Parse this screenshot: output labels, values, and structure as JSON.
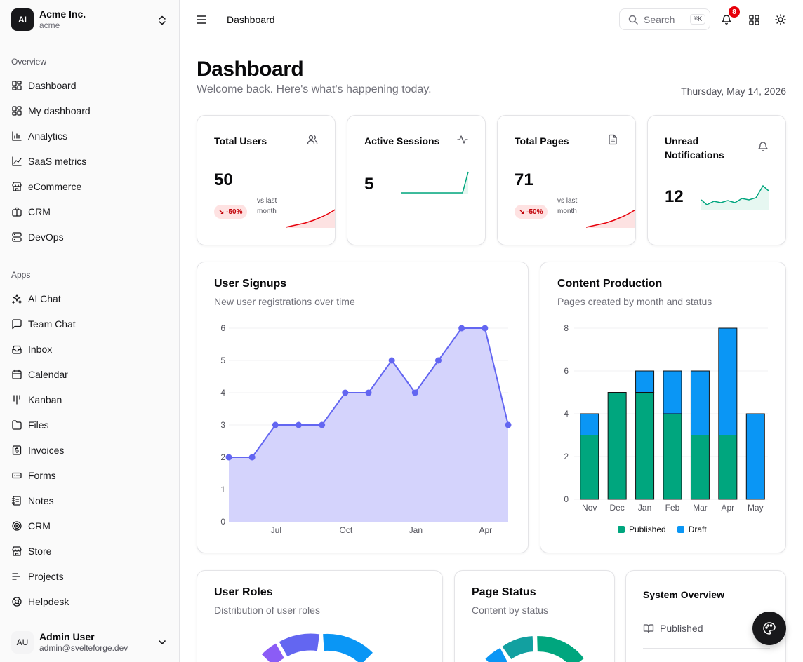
{
  "org": {
    "logo_text": "AI",
    "name": "Acme Inc.",
    "slug": "acme"
  },
  "sidebar": {
    "overview_label": "Overview",
    "overview": [
      {
        "label": "Dashboard",
        "icon": "layout-dashboard-icon"
      },
      {
        "label": "My dashboard",
        "icon": "layout-dashboard-icon"
      },
      {
        "label": "Analytics",
        "icon": "bar-chart-icon"
      },
      {
        "label": "SaaS metrics",
        "icon": "line-chart-icon"
      },
      {
        "label": "eCommerce",
        "icon": "store-icon"
      },
      {
        "label": "CRM",
        "icon": "briefcase-icon"
      },
      {
        "label": "DevOps",
        "icon": "server-icon"
      }
    ],
    "apps_label": "Apps",
    "apps": [
      {
        "label": "AI Chat",
        "icon": "sparkles-icon"
      },
      {
        "label": "Team Chat",
        "icon": "message-square-icon"
      },
      {
        "label": "Inbox",
        "icon": "inbox-icon"
      },
      {
        "label": "Calendar",
        "icon": "calendar-icon"
      },
      {
        "label": "Kanban",
        "icon": "kanban-icon"
      },
      {
        "label": "Files",
        "icon": "folder-icon"
      },
      {
        "label": "Invoices",
        "icon": "receipt-icon"
      },
      {
        "label": "Forms",
        "icon": "form-input-icon"
      },
      {
        "label": "Notes",
        "icon": "notebook-icon"
      },
      {
        "label": "CRM",
        "icon": "target-icon"
      },
      {
        "label": "Store",
        "icon": "store-icon"
      },
      {
        "label": "Projects",
        "icon": "list-icon"
      },
      {
        "label": "Helpdesk",
        "icon": "life-buoy-icon"
      }
    ]
  },
  "user": {
    "initials": "AU",
    "name": "Admin User",
    "email": "admin@svelteforge.dev"
  },
  "topbar": {
    "breadcrumb": "Dashboard",
    "search_label": "Search",
    "search_shortcut": "⌘K",
    "notification_count": "8"
  },
  "page": {
    "title": "Dashboard",
    "subtitle": "Welcome back. Here's what's happening today.",
    "date": "Thursday, May 14, 2026"
  },
  "stats": [
    {
      "title": "Total Users",
      "value": "50",
      "change": "↘ -50%",
      "vs": "vs last month",
      "icon": "users-icon"
    },
    {
      "title": "Active Sessions",
      "value": "5",
      "icon": "activity-icon"
    },
    {
      "title": "Total Pages",
      "value": "71",
      "change": "↘ -50%",
      "vs": "vs last month",
      "icon": "file-text-icon"
    },
    {
      "title": "Unread Notifications",
      "value": "12",
      "icon": "bell-icon"
    }
  ],
  "signups": {
    "title": "User Signups",
    "subtitle": "New user registrations over time"
  },
  "production": {
    "title": "Content Production",
    "subtitle": "Pages created by month and status",
    "legend_published": "Published",
    "legend_draft": "Draft"
  },
  "roles": {
    "title": "User Roles",
    "subtitle": "Distribution of user roles"
  },
  "status": {
    "title": "Page Status",
    "subtitle": "Content by status"
  },
  "system": {
    "title": "System Overview",
    "row1": "Published"
  },
  "colors": {
    "accent": "#6366f1",
    "area_fill": "#d4d3fc",
    "published": "#00a67e",
    "draft": "#0a96f5",
    "negative": "#e7000b",
    "positive": "#00a67e"
  },
  "chart_data": [
    {
      "type": "area",
      "title": "User Signups",
      "x_tick_labels": [
        "Jul",
        "Oct",
        "Jan",
        "Apr"
      ],
      "y": [
        2,
        2,
        3,
        3,
        3,
        4,
        4,
        5,
        4,
        5,
        6,
        6,
        3
      ],
      "ylim": [
        0,
        6
      ],
      "y_ticks": [
        0,
        1,
        2,
        3,
        4,
        5,
        6
      ],
      "grid": true
    },
    {
      "type": "bar",
      "title": "Content Production",
      "categories": [
        "Nov",
        "Dec",
        "Jan",
        "Feb",
        "Mar",
        "Apr",
        "May"
      ],
      "series": [
        {
          "name": "Published",
          "values": [
            3,
            5,
            5,
            4,
            3,
            3,
            0
          ]
        },
        {
          "name": "Draft",
          "values": [
            1,
            0,
            1,
            2,
            3,
            5,
            4
          ]
        }
      ],
      "ylim": [
        0,
        8
      ],
      "y_ticks": [
        0,
        2,
        4,
        6,
        8
      ],
      "stacked": true,
      "legend": "bottom"
    }
  ]
}
